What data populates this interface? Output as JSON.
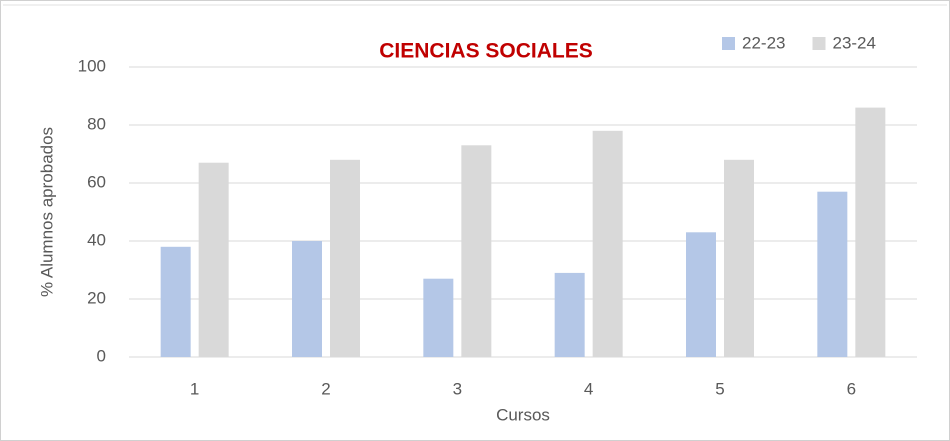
{
  "chart_data": {
    "type": "bar",
    "title": "CIENCIAS SOCIALES",
    "x_label": "Cursos",
    "y_label": "% Alumnos aprobados",
    "categories": [
      "1",
      "2",
      "3",
      "4",
      "5",
      "6"
    ],
    "series": [
      {
        "name": "22-23",
        "color": "#b4c7e7",
        "values": [
          38,
          40,
          27,
          29,
          43,
          57
        ]
      },
      {
        "name": "23-24",
        "color": "#d9d9d9",
        "values": [
          67,
          68,
          73,
          78,
          68,
          86
        ]
      }
    ],
    "ylim": [
      0,
      100
    ],
    "yticks": [
      0,
      20,
      40,
      60,
      80,
      100
    ],
    "grid": true,
    "legend": "top-right"
  }
}
